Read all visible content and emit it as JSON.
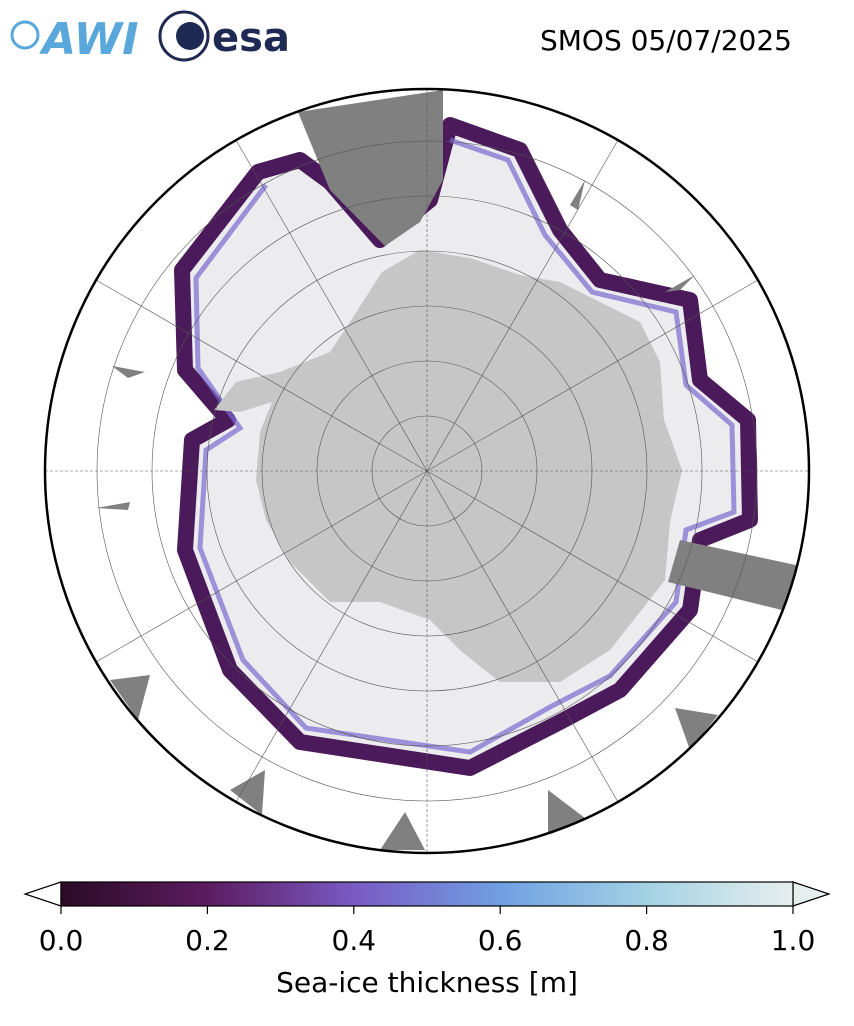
{
  "header": {
    "logo_left": "AWI",
    "logo_right": "esa",
    "title": "SMOS 05/07/2025"
  },
  "colorbar": {
    "label": "Sea-ice thickness [m]",
    "lim": [
      0,
      1
    ],
    "ticks": [
      {
        "value": 0,
        "label": "0.0"
      },
      {
        "value": 0.2,
        "label": "0.2"
      },
      {
        "value": 0.4,
        "label": "0.4"
      },
      {
        "value": 0.6,
        "label": "0.6"
      },
      {
        "value": 0.8,
        "label": "0.8"
      },
      {
        "value": 1,
        "label": "1.0"
      }
    ],
    "colors": [
      "#2b0a26",
      "#5c1c60",
      "#7a5ac4",
      "#6f9fe2",
      "#a3d2e4",
      "#e6eeee"
    ]
  }
}
